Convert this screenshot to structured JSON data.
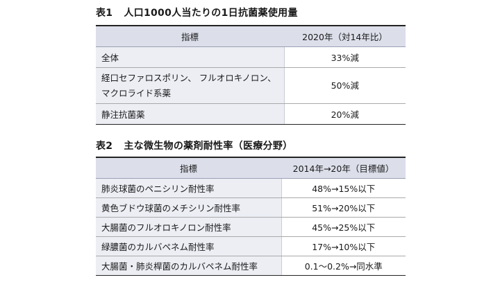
{
  "table1": {
    "label": "表1",
    "title": "人口1000人当たりの1日抗菌薬使用量",
    "headers": [
      "指標",
      "2020年（対14年比）"
    ],
    "rows": [
      {
        "indicator": "全体",
        "value": "33%減"
      },
      {
        "indicator_line1": "経口セファロスポリン、 フルオロキノロン、",
        "indicator_line2": "マクロライド系薬",
        "value": "50%減"
      },
      {
        "indicator": "静注抗菌薬",
        "value": "20%減"
      }
    ]
  },
  "table2": {
    "label": "表2",
    "title": "主な微生物の薬剤耐性率（医療分野）",
    "headers": [
      "指標",
      "2014年→20年（目標値）"
    ],
    "rows": [
      {
        "indicator": "肺炎球菌のペニシリン耐性率",
        "value": "48%→15%以下"
      },
      {
        "indicator": "黄色ブドウ球菌のメチシリン耐性率",
        "value": "51%→20%以下"
      },
      {
        "indicator": "大腸菌のフルオロキノロン耐性率",
        "value": "45%→25%以下"
      },
      {
        "indicator": "緑膿菌のカルバペネム耐性率",
        "value": "17%→10%以下"
      },
      {
        "indicator": "大腸菌・肺炎桿菌のカルバペネム耐性率",
        "value": "0.1～0.2%→同水準"
      }
    ]
  }
}
